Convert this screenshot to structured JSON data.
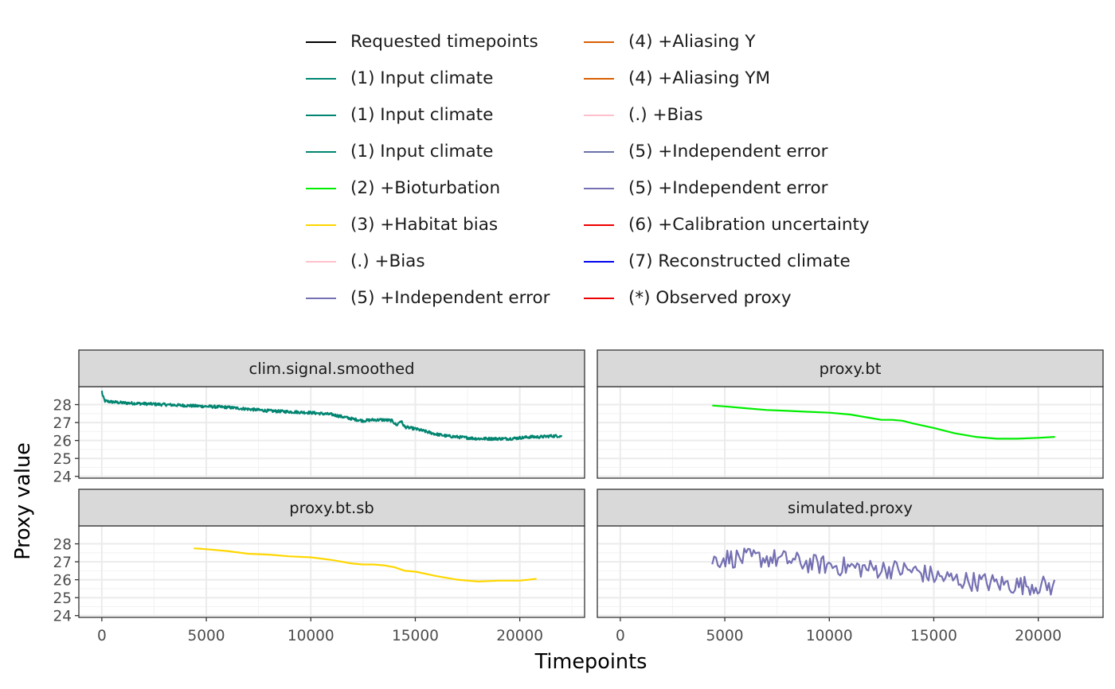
{
  "legend": {
    "items": [
      {
        "label": "Requested timepoints",
        "color": "#000000"
      },
      {
        "label": "(1) Input climate",
        "color": "#018571"
      },
      {
        "label": "(1) Input climate",
        "color": "#018571"
      },
      {
        "label": "(1) Input climate",
        "color": "#018571"
      },
      {
        "label": "(2) +Bioturbation",
        "color": "#00ee00"
      },
      {
        "label": "(3) +Habitat bias",
        "color": "#ffd700"
      },
      {
        "label": "(.) +Bias",
        "color": "#ffc0cb"
      },
      {
        "label": "(5) +Independent error",
        "color": "#7570b3"
      },
      {
        "label": "(4) +Aliasing Y",
        "color": "#d95f02"
      },
      {
        "label": "(4) +Aliasing YM",
        "color": "#d95f02"
      },
      {
        "label": "(.) +Bias",
        "color": "#ffc0cb"
      },
      {
        "label": "(5) +Independent error",
        "color": "#6a70a8"
      },
      {
        "label": "(5) +Independent error",
        "color": "#7570b3"
      },
      {
        "label": "(6) +Calibration uncertainty",
        "color": "#ee0000"
      },
      {
        "label": "(7) Reconstructed climate",
        "color": "#0000ee"
      },
      {
        "label": "(*) Observed proxy",
        "color": "#ee0000"
      }
    ]
  },
  "chart_data": {
    "type": "line",
    "xlabel": "Timepoints",
    "ylabel": "Proxy value",
    "xlim": [
      -1100,
      23100
    ],
    "ylim": [
      23.9,
      29.0
    ],
    "x_ticks": [
      0,
      5000,
      10000,
      15000,
      20000
    ],
    "y_ticks": [
      24,
      25,
      26,
      27,
      28
    ],
    "grid": true,
    "facet_layout": "2x2",
    "panels": [
      {
        "title": "clim.signal.smoothed",
        "color": "#018571",
        "noise": 0.08,
        "step": 25,
        "x": [
          0,
          50,
          150,
          500,
          1000,
          2000,
          3000,
          4000,
          5000,
          6000,
          7000,
          8000,
          9000,
          10000,
          11000,
          12000,
          12500,
          13000,
          13500,
          13900,
          14100,
          14300,
          14500,
          15000,
          15500,
          16000,
          16500,
          17000,
          17500,
          18000,
          18500,
          19000,
          19500,
          20000,
          20500,
          21000,
          21500,
          22000
        ],
        "y": [
          28.75,
          28.45,
          28.2,
          28.15,
          28.1,
          28.05,
          28.0,
          27.95,
          27.9,
          27.85,
          27.75,
          27.65,
          27.6,
          27.55,
          27.45,
          27.2,
          27.1,
          27.15,
          27.15,
          27.1,
          26.85,
          27.1,
          26.75,
          26.65,
          26.5,
          26.35,
          26.25,
          26.2,
          26.15,
          26.1,
          26.1,
          26.1,
          26.1,
          26.15,
          26.2,
          26.2,
          26.25,
          26.25
        ]
      },
      {
        "title": "proxy.bt",
        "color": "#00ee00",
        "x": [
          4400,
          5000,
          6000,
          7000,
          8000,
          9000,
          10000,
          11000,
          12000,
          12500,
          13000,
          13500,
          14000,
          15000,
          16000,
          17000,
          18000,
          19000,
          20000,
          20800
        ],
        "y": [
          27.95,
          27.9,
          27.8,
          27.7,
          27.65,
          27.6,
          27.55,
          27.45,
          27.25,
          27.15,
          27.15,
          27.1,
          26.95,
          26.7,
          26.4,
          26.2,
          26.1,
          26.1,
          26.15,
          26.2
        ]
      },
      {
        "title": "proxy.bt.sb",
        "color": "#ffd700",
        "x": [
          4400,
          5000,
          6000,
          7000,
          8000,
          9000,
          10000,
          11000,
          12000,
          12500,
          13000,
          13500,
          14000,
          14500,
          15000,
          16000,
          17000,
          18000,
          19000,
          20000,
          20800
        ],
        "y": [
          27.75,
          27.7,
          27.6,
          27.45,
          27.4,
          27.3,
          27.25,
          27.1,
          26.9,
          26.85,
          26.85,
          26.8,
          26.7,
          26.5,
          26.45,
          26.2,
          26.0,
          25.9,
          25.95,
          25.95,
          26.05
        ]
      },
      {
        "title": "simulated.proxy",
        "color": "#7570b3",
        "noise": 0.55,
        "step": 90,
        "x": [
          4400,
          5000,
          6000,
          7000,
          8000,
          9000,
          10000,
          11000,
          12000,
          13000,
          14000,
          15000,
          16000,
          17000,
          18000,
          19000,
          20000,
          20800
        ],
        "y": [
          27.1,
          27.2,
          27.2,
          27.2,
          27.1,
          26.9,
          26.8,
          26.7,
          26.6,
          26.6,
          26.5,
          26.2,
          26.0,
          25.9,
          25.8,
          25.7,
          25.7,
          25.6
        ]
      }
    ]
  }
}
